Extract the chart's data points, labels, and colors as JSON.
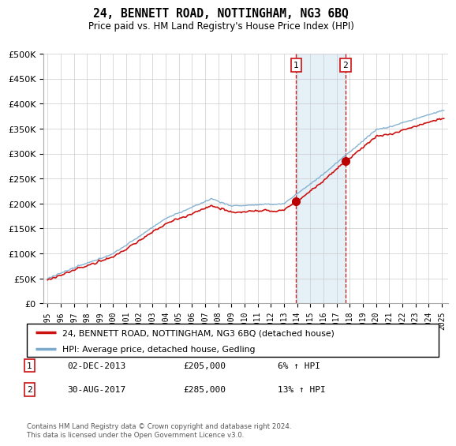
{
  "title": "24, BENNETT ROAD, NOTTINGHAM, NG3 6BQ",
  "subtitle": "Price paid vs. HM Land Registry's House Price Index (HPI)",
  "legend_line1": "24, BENNETT ROAD, NOTTINGHAM, NG3 6BQ (detached house)",
  "legend_line2": "HPI: Average price, detached house, Gedling",
  "transaction1_date": "02-DEC-2013",
  "transaction1_price": "£205,000",
  "transaction1_hpi": "6% ↑ HPI",
  "transaction1_year": 2013.92,
  "transaction1_value": 205000,
  "transaction2_date": "30-AUG-2017",
  "transaction2_price": "£285,000",
  "transaction2_hpi": "13% ↑ HPI",
  "transaction2_year": 2017.67,
  "transaction2_value": 285000,
  "footnote": "Contains HM Land Registry data © Crown copyright and database right 2024.\nThis data is licensed under the Open Government Licence v3.0.",
  "hpi_color": "#7aabcf",
  "price_color": "#cc1111",
  "marker_color": "#bb0000",
  "vline_color": "#cc1111",
  "shade_color": "#daeaf5",
  "ylim": [
    0,
    500000
  ],
  "yticks": [
    0,
    50000,
    100000,
    150000,
    200000,
    250000,
    300000,
    350000,
    400000,
    450000,
    500000
  ],
  "xlim_start": 1994.7,
  "xlim_end": 2025.5,
  "background_color": "#ffffff",
  "grid_color": "#cccccc"
}
